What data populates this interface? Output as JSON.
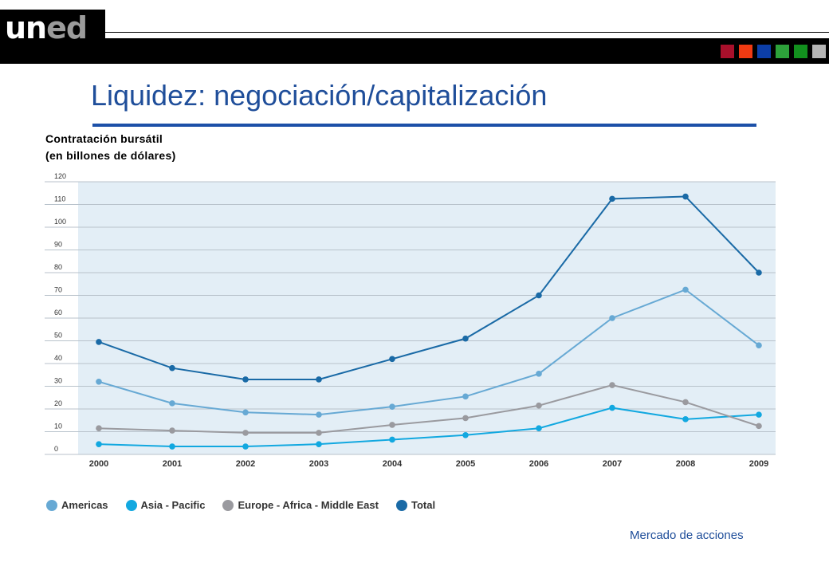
{
  "logo": {
    "part1": "un",
    "part2": "ed"
  },
  "header_squares": [
    "#a8102b",
    "#f03a12",
    "#0c3ea8",
    "#2da13a",
    "#12901e",
    "#b4b4b4"
  ],
  "title": "Liquidez: negociación/capitalización",
  "subtitle_line1": "Contratación bursátil",
  "subtitle_line2": "(en billones de dólares)",
  "footer": "Mercado de acciones",
  "chart_data": {
    "type": "line",
    "x": [
      "2000",
      "2001",
      "2002",
      "2003",
      "2004",
      "2005",
      "2006",
      "2007",
      "2008",
      "2009"
    ],
    "ylim": [
      0,
      120
    ],
    "yticks": [
      0,
      10,
      20,
      30,
      40,
      50,
      60,
      70,
      80,
      90,
      100,
      110,
      120
    ],
    "grid": true,
    "legend_position": "bottom-left",
    "series": [
      {
        "name": "Americas",
        "color": "#67a9d4",
        "values": [
          32,
          22.5,
          18.5,
          17.5,
          21,
          25.5,
          35.5,
          60,
          72.5,
          48
        ]
      },
      {
        "name": "Asia - Pacific",
        "color": "#12a8e0",
        "values": [
          4.5,
          3.5,
          3.5,
          4.5,
          6.5,
          8.5,
          11.5,
          20.5,
          15.5,
          17.5
        ]
      },
      {
        "name": "Europe - Africa - Middle East",
        "color": "#9a9a9f",
        "values": [
          11.5,
          10.5,
          9.5,
          9.5,
          13,
          16,
          21.5,
          30.5,
          23,
          12.5
        ]
      },
      {
        "name": "Total",
        "color": "#1a6aa6",
        "values": [
          49.5,
          38,
          33,
          33,
          42,
          51,
          70,
          112.5,
          113.5,
          80
        ]
      }
    ]
  }
}
